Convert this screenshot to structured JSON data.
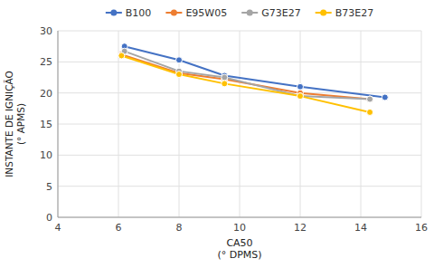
{
  "chart_data": {
    "type": "line",
    "xlabel": "CA50\n(° DPMS)",
    "ylabel": "INSTANTE DE IGNIÇÃO\n(° APMS)",
    "series": [
      {
        "name": "B100",
        "color": "#4472C4",
        "marker": "circle",
        "x": [
          6.2,
          8.0,
          9.5,
          12.0,
          14.8
        ],
        "values": [
          27.5,
          25.3,
          22.8,
          21.0,
          19.3
        ]
      },
      {
        "name": "E95W05",
        "color": "#ED7D31",
        "marker": "circle",
        "x": [
          6.1,
          8.0,
          9.5,
          12.0,
          14.3
        ],
        "values": [
          26.2,
          23.2,
          22.2,
          20.0,
          19.0
        ]
      },
      {
        "name": "G73E27",
        "color": "#A5A5A5",
        "marker": "circle",
        "x": [
          6.2,
          8.0,
          9.5,
          12.0,
          14.3
        ],
        "values": [
          26.7,
          23.5,
          22.5,
          19.5,
          19.0
        ]
      },
      {
        "name": "B73E27",
        "color": "#FFC000",
        "marker": "circle",
        "x": [
          6.1,
          8.0,
          9.5,
          12.0,
          14.3
        ],
        "values": [
          26.0,
          23.0,
          21.5,
          19.5,
          16.9
        ]
      }
    ],
    "xlim": [
      4,
      16
    ],
    "ylim": [
      0,
      30
    ],
    "xticks": [
      4,
      6,
      8,
      10,
      12,
      14,
      16
    ],
    "yticks": [
      0,
      5,
      10,
      15,
      20,
      25,
      30
    ],
    "grid": true,
    "legend": "top"
  }
}
